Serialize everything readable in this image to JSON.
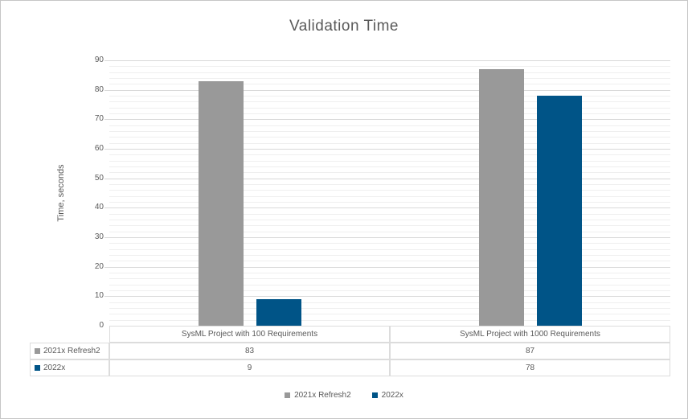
{
  "chart_data": {
    "type": "bar",
    "title": "Validation Time",
    "xlabel": "",
    "ylabel": "Time, seconds",
    "ylim": [
      0,
      90
    ],
    "y_major_step": 10,
    "y_minor_step": 2,
    "grid": "horizontal major+minor",
    "legend_position": "bottom",
    "y_tick_labels": [
      "0",
      "10",
      "20",
      "30",
      "40",
      "50",
      "60",
      "70",
      "80",
      "90"
    ],
    "categories": [
      "SysML Project with 100 Requirements",
      "SysML Project with 1000 Requirements"
    ],
    "series": [
      {
        "name": "2021x Refresh2",
        "color": "#999999",
        "values": [
          83,
          87
        ]
      },
      {
        "name": "2022x",
        "color": "#005487",
        "values": [
          9,
          78
        ]
      }
    ],
    "data_table": {
      "shown": true,
      "column_headers": [
        "SysML Project with 100 Requirements",
        "SysML Project with 1000 Requirements"
      ],
      "rows": [
        {
          "label": "2021x Refresh2",
          "swatch_color": "#999999",
          "values": [
            "83",
            "87"
          ]
        },
        {
          "label": "2022x",
          "swatch_color": "#005487",
          "values": [
            "9",
            "78"
          ]
        }
      ]
    },
    "legend": [
      {
        "label": "2021x Refresh2",
        "color": "#999999"
      },
      {
        "label": "2022x",
        "color": "#005487"
      }
    ]
  },
  "colors": {
    "background": "#ffffff",
    "border": "#c6c6c6",
    "text": "#595959",
    "major_gridline": "#d9d9d9",
    "minor_gridline": "#efefef",
    "table_border": "#dcdcdc",
    "series_gray": "#999999",
    "series_blue": "#005487"
  }
}
